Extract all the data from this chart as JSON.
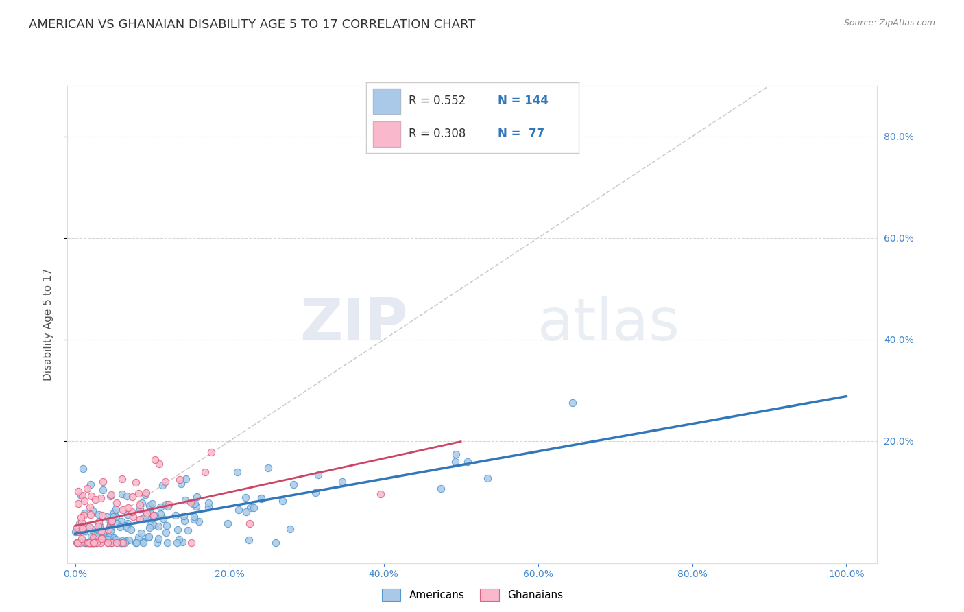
{
  "title": "AMERICAN VS GHANAIAN DISABILITY AGE 5 TO 17 CORRELATION CHART",
  "source_text": "Source: ZipAtlas.com",
  "ylabel": "Disability Age 5 to 17",
  "x_tick_labels": [
    "0.0%",
    "20.0%",
    "40.0%",
    "60.0%",
    "80.0%",
    "100.0%"
  ],
  "x_tick_values": [
    0.0,
    0.2,
    0.4,
    0.6,
    0.8,
    1.0
  ],
  "y_tick_labels": [
    "20.0%",
    "40.0%",
    "60.0%",
    "80.0%"
  ],
  "y_tick_values": [
    0.2,
    0.4,
    0.6,
    0.8
  ],
  "xlim": [
    -0.01,
    1.04
  ],
  "ylim": [
    -0.04,
    0.9
  ],
  "watermark_zip": "ZIP",
  "watermark_atlas": "atlas",
  "legend_box": {
    "american_color": "#aac9e8",
    "ghanaian_color": "#f9b8cb",
    "american_R": "0.552",
    "american_N": "144",
    "ghanaian_R": "0.308",
    "ghanaian_N": "77"
  },
  "american_scatter": {
    "color": "#aac9e8",
    "edge_color": "#5599cc",
    "alpha": 0.85,
    "size": 55
  },
  "ghanaian_scatter": {
    "color": "#f9b8cb",
    "edge_color": "#e06080",
    "alpha": 0.85,
    "size": 55
  },
  "trend_line_american": {
    "color": "#3377bb",
    "linewidth": 2.5
  },
  "trend_line_ghanaian": {
    "color": "#cc4466",
    "linewidth": 2.0
  },
  "diagonal_line": {
    "color": "#cccccc",
    "linewidth": 1.2,
    "linestyle": "--"
  },
  "background_color": "#ffffff",
  "grid_color": "#cccccc",
  "title_color": "#333333",
  "title_fontsize": 13,
  "axis_label_fontsize": 11,
  "tick_fontsize": 10,
  "tick_color": "#4488cc"
}
